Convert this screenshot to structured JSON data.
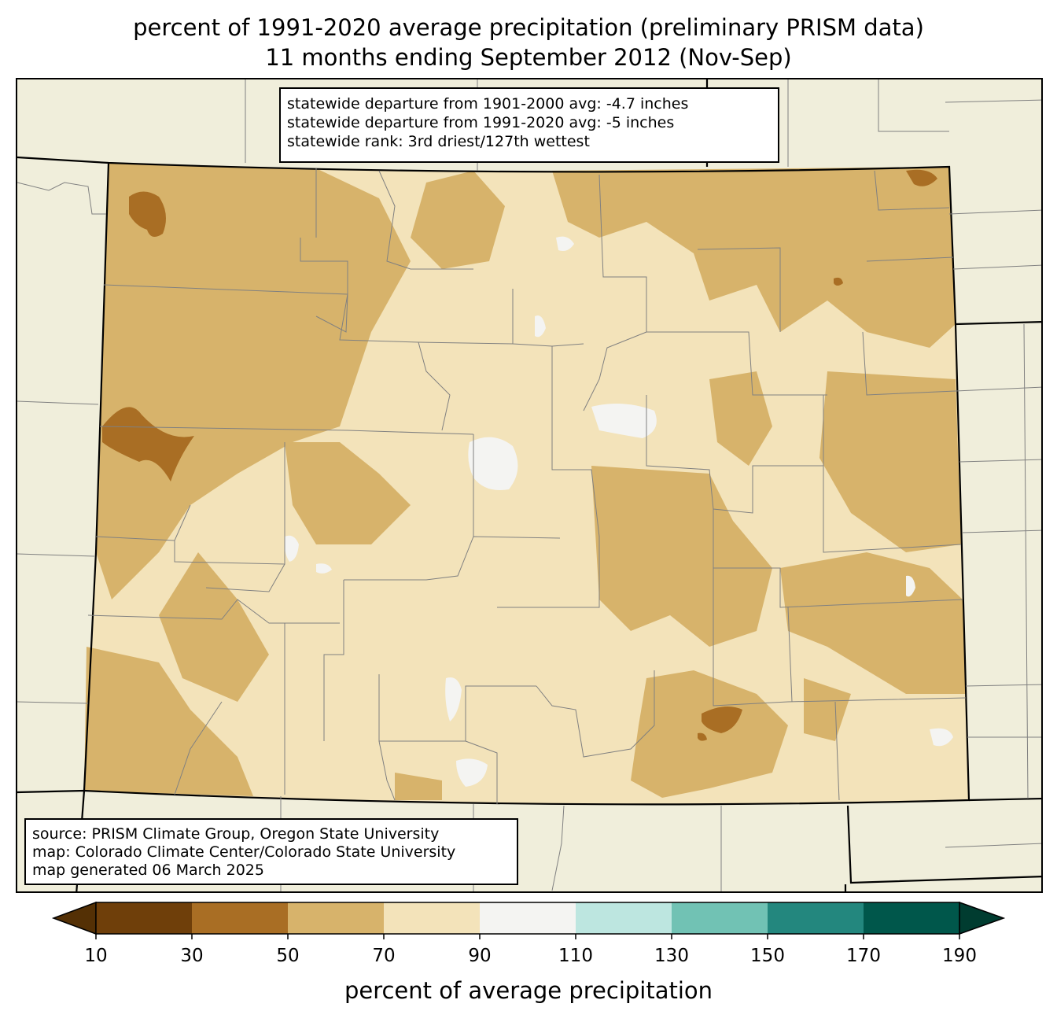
{
  "title": {
    "line1": "percent of 1991-2020 average precipitation (preliminary PRISM data)",
    "line2": "11 months ending September 2012 (Nov-Sep)"
  },
  "stats": {
    "line1": "statewide departure from 1901-2000 avg: -4.7 inches",
    "line2": "statewide departure from 1991-2020 avg: -5 inches",
    "line3": "statewide rank: 3rd driest/127th wettest"
  },
  "source": {
    "line1": "source: PRISM Climate Group, Oregon State University",
    "line2": "map: Colorado Climate Center/Colorado State University",
    "line3": "map generated 06 March 2025"
  },
  "colorbar": {
    "label": "percent of average precipitation",
    "ticks": [
      "10",
      "30",
      "50",
      "70",
      "90",
      "110",
      "130",
      "150",
      "170",
      "190"
    ],
    "colors": [
      "#6f3f0a",
      "#a96e24",
      "#d7b36b",
      "#f3e3ba",
      "#f4f4f2",
      "#bde6e0",
      "#71c2b4",
      "#23877e",
      "#00574b"
    ],
    "under_color": "#543005",
    "over_color": "#003c30"
  },
  "map": {
    "background_color": "#f0eedb",
    "dominant_class": "70-90",
    "colors": {
      "c10_30": "#6f3f0a",
      "c30_50": "#a96e24",
      "c50_70": "#d7b36b",
      "c70_90": "#f3e3ba",
      "c90_110": "#f4f4f2"
    }
  }
}
